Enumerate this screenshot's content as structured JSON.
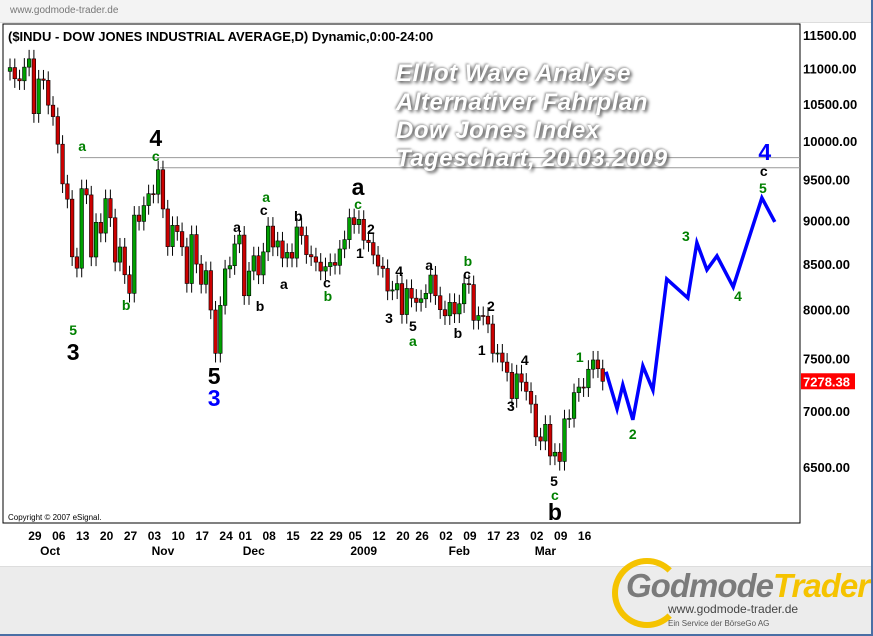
{
  "header": {
    "site": "www.godmode-trader.de"
  },
  "overlay_text": [
    "Elliot Wave Analyse",
    "Alternativer Fahrplan",
    "Dow Jones Index",
    "Tageschart, 20.03.2009"
  ],
  "footer": {
    "logo_part1": "Godmode",
    "logo_part2": "Trader",
    "url": "www.godmode-trader.de",
    "tagline": "Ein Service der BörseGo AG"
  },
  "chart_data": {
    "type": "candlestick",
    "title": "($INDU - DOW JONES INDUSTRIAL AVERAGE,D) Dynamic,0:00-24:00",
    "copyright": "Copyright © 2007 eSignal.",
    "y_scale": "log",
    "ylim": [
      6000,
      11700
    ],
    "y_ticks": [
      "11500.00",
      "11000.00",
      "10500.00",
      "10000.00",
      "9500.00",
      "9000.00",
      "8500.00",
      "8000.00",
      "7500.00",
      "7000.00",
      "6500.00"
    ],
    "last_price": "7278.38",
    "colors": {
      "up": "#00a000",
      "down": "#cc0000",
      "forecast": "#0000ff",
      "last_price_tag": "#ff0000",
      "label_green": "#008000",
      "label_black": "#000000",
      "label_blue": "#0000ff"
    },
    "x_ticks": [
      {
        "i": 5,
        "label": "29"
      },
      {
        "i": 10,
        "label": "06"
      },
      {
        "i": 15,
        "label": "13"
      },
      {
        "i": 20,
        "label": "20"
      },
      {
        "i": 25,
        "label": "27"
      },
      {
        "i": 30,
        "label": "03"
      },
      {
        "i": 35,
        "label": "10"
      },
      {
        "i": 40,
        "label": "17"
      },
      {
        "i": 45,
        "label": "24"
      },
      {
        "i": 49,
        "label": "01"
      },
      {
        "i": 54,
        "label": "08"
      },
      {
        "i": 59,
        "label": "15"
      },
      {
        "i": 64,
        "label": "22"
      },
      {
        "i": 68,
        "label": "29"
      },
      {
        "i": 72,
        "label": "05"
      },
      {
        "i": 77,
        "label": "12"
      },
      {
        "i": 82,
        "label": "20"
      },
      {
        "i": 86,
        "label": "26"
      },
      {
        "i": 91,
        "label": "02"
      },
      {
        "i": 96,
        "label": "09"
      },
      {
        "i": 101,
        "label": "17"
      },
      {
        "i": 105,
        "label": "23"
      },
      {
        "i": 110,
        "label": "02"
      },
      {
        "i": 115,
        "label": "09"
      },
      {
        "i": 120,
        "label": "16"
      }
    ],
    "month_labels": [
      {
        "i": 8.4,
        "label": "Oct"
      },
      {
        "i": 32,
        "label": "Nov"
      },
      {
        "i": 51,
        "label": "Dec"
      },
      {
        "i": 74,
        "label": "2009"
      },
      {
        "i": 94,
        "label": "Feb"
      },
      {
        "i": 112,
        "label": "Mar"
      }
    ],
    "first_date": "2008-09-22",
    "last_date": "2009-03-20",
    "closes": [
      11016,
      10854,
      10825,
      11022,
      11143,
      10365,
      10851,
      10831,
      10482,
      10325,
      9955,
      9447,
      9258,
      8579,
      8451,
      9387,
      9310,
      8577,
      8979,
      8852,
      9265,
      9033,
      8519,
      8691,
      8378,
      8175,
      9065,
      8990,
      9180,
      9325,
      9319,
      9625,
      9139,
      8695,
      8943,
      8870,
      8693,
      8282,
      8835,
      8497,
      8273,
      8424,
      7997,
      7552,
      8046,
      8443,
      8479,
      8726,
      8829,
      8149,
      8419,
      8591,
      8376,
      8635,
      8934,
      8691,
      8761,
      8565,
      8629,
      8564,
      8924,
      8824,
      8604,
      8579,
      8519,
      8419,
      8468,
      8515,
      8483,
      8668,
      8776,
      9034,
      8952,
      9015,
      8769,
      8742,
      8599,
      8474,
      8448,
      8200,
      8212,
      8281,
      7949,
      8228,
      8123,
      8077,
      8116,
      8175,
      8375,
      8149,
      8000,
      7936,
      8078,
      7956,
      8063,
      8280,
      8270,
      7888,
      7939,
      7932,
      7850,
      7552,
      7555,
      7465,
      7365,
      7114,
      7350,
      7270,
      7182,
      7062,
      6763,
      6726,
      6876,
      6594,
      6627,
      6547,
      6926,
      6930,
      7170,
      7223,
      7216,
      7395,
      7486,
      7400,
      7278
    ],
    "horizontal_lines": [
      9780,
      9650
    ],
    "forecast_path": [
      {
        "i": 124.7,
        "p": 7370
      },
      {
        "i": 127,
        "p": 7018
      },
      {
        "i": 128.2,
        "p": 7243
      },
      {
        "i": 130.3,
        "p": 6917
      },
      {
        "i": 132.4,
        "p": 7427
      },
      {
        "i": 134.5,
        "p": 7194
      },
      {
        "i": 137.4,
        "p": 8331
      },
      {
        "i": 141.8,
        "p": 8125
      },
      {
        "i": 143.7,
        "p": 8740
      },
      {
        "i": 145.8,
        "p": 8433
      },
      {
        "i": 147.9,
        "p": 8589
      },
      {
        "i": 151.3,
        "p": 8244
      },
      {
        "i": 157.3,
        "p": 9274
      },
      {
        "i": 160,
        "p": 8983
      }
    ],
    "wave_labels": [
      {
        "t": "a",
        "c": "green",
        "i": 15.1,
        "p": 9931
      },
      {
        "t": "4",
        "c": "black",
        "i": 30.5,
        "p": 10036,
        "major": true
      },
      {
        "t": "c",
        "c": "green",
        "i": 30.5,
        "p": 9803
      },
      {
        "t": "5",
        "c": "green",
        "i": 13.2,
        "p": 7786
      },
      {
        "t": "3",
        "c": "black",
        "i": 13.2,
        "p": 7566,
        "major": true
      },
      {
        "t": "b",
        "c": "green",
        "i": 24.3,
        "p": 8050
      },
      {
        "t": "5",
        "c": "black",
        "i": 42.7,
        "p": 7331,
        "major": true
      },
      {
        "t": "3",
        "c": "blue",
        "i": 42.7,
        "p": 7120,
        "major": true
      },
      {
        "t": "a",
        "c": "black",
        "i": 47.5,
        "p": 8921
      },
      {
        "t": "c",
        "c": "black",
        "i": 53.1,
        "p": 9127
      },
      {
        "t": "a",
        "c": "green",
        "i": 53.6,
        "p": 9285
      },
      {
        "t": "b",
        "c": "black",
        "i": 52.3,
        "p": 8039
      },
      {
        "t": "b",
        "c": "black",
        "i": 60.3,
        "p": 9056
      },
      {
        "t": "a",
        "c": "black",
        "i": 57.3,
        "p": 8279
      },
      {
        "t": "c",
        "c": "black",
        "i": 66.3,
        "p": 8291
      },
      {
        "t": "b",
        "c": "green",
        "i": 66.5,
        "p": 8148
      },
      {
        "t": "a",
        "c": "black",
        "i": 72.8,
        "p": 9408,
        "major": true
      },
      {
        "t": "c",
        "c": "green",
        "i": 72.8,
        "p": 9198
      },
      {
        "t": "2",
        "c": "black",
        "i": 75.5,
        "p": 8899
      },
      {
        "t": "1",
        "c": "black",
        "i": 73.2,
        "p": 8622
      },
      {
        "t": "4",
        "c": "black",
        "i": 81.4,
        "p": 8419
      },
      {
        "t": "3",
        "c": "black",
        "i": 79.3,
        "p": 7913
      },
      {
        "t": "5",
        "c": "black",
        "i": 84.3,
        "p": 7829
      },
      {
        "t": "a",
        "c": "green",
        "i": 84.3,
        "p": 7676
      },
      {
        "t": "a",
        "c": "black",
        "i": 87.7,
        "p": 8486
      },
      {
        "t": "b",
        "c": "black",
        "i": 93.7,
        "p": 7757
      },
      {
        "t": "b",
        "c": "green",
        "i": 95.8,
        "p": 8531
      },
      {
        "t": "c",
        "c": "black",
        "i": 95.6,
        "p": 8386
      },
      {
        "t": "2",
        "c": "black",
        "i": 100.6,
        "p": 8039
      },
      {
        "t": "1",
        "c": "black",
        "i": 98.7,
        "p": 7586
      },
      {
        "t": "4",
        "c": "black",
        "i": 107.7,
        "p": 7487
      },
      {
        "t": "3",
        "c": "black",
        "i": 104.8,
        "p": 7045
      },
      {
        "t": "1",
        "c": "green",
        "i": 119.2,
        "p": 7518
      },
      {
        "t": "2",
        "c": "green",
        "i": 130.3,
        "p": 6790
      },
      {
        "t": "3",
        "c": "green",
        "i": 141.4,
        "p": 8818
      },
      {
        "t": "4",
        "c": "green",
        "i": 152.3,
        "p": 8148
      },
      {
        "t": "5",
        "c": "green",
        "i": 157.5,
        "p": 9396
      },
      {
        "t": "c",
        "c": "black",
        "i": 157.7,
        "p": 9609
      },
      {
        "t": "4",
        "c": "blue",
        "i": 157.9,
        "p": 9853,
        "major": true
      },
      {
        "t": "5",
        "c": "black",
        "i": 113.8,
        "p": 6380
      },
      {
        "t": "c",
        "c": "green",
        "i": 114,
        "p": 6264
      },
      {
        "t": "b",
        "c": "black",
        "i": 114,
        "p": 6125,
        "major": true
      }
    ]
  }
}
